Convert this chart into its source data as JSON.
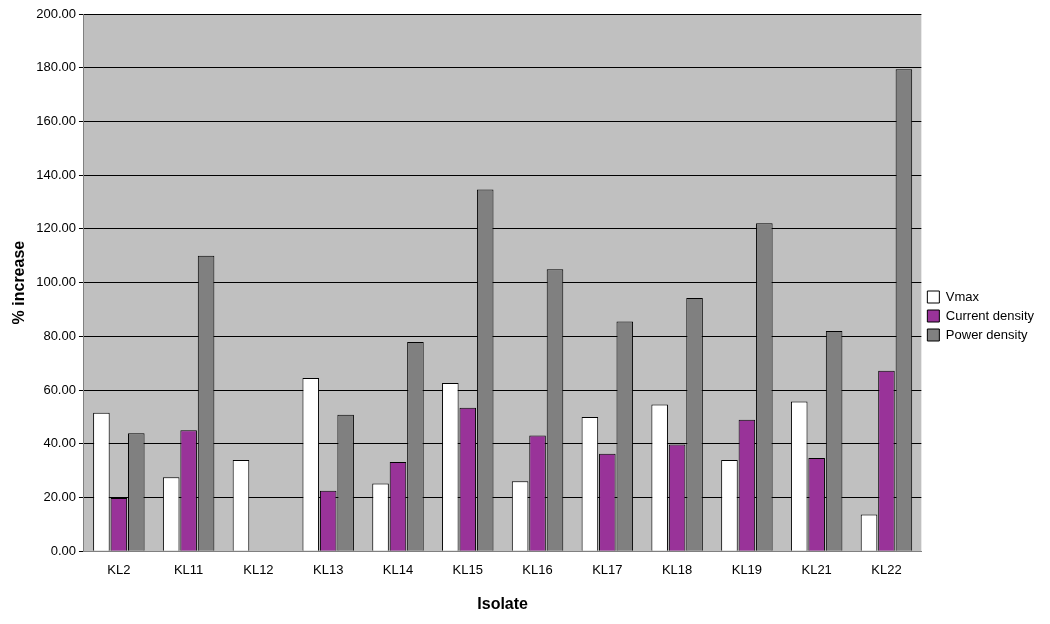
{
  "chart_data": {
    "type": "bar",
    "xlabel": "Isolate",
    "ylabel": "% increase",
    "categories": [
      "KL2",
      "KL11",
      "KL12",
      "KL13",
      "KL14",
      "KL15",
      "KL16",
      "KL17",
      "KL18",
      "KL19",
      "KL21",
      "KL22"
    ],
    "series": [
      {
        "name": "Vmax",
        "color": "#ffffff",
        "values": [
          51.5,
          27.5,
          34,
          64.5,
          25.2,
          62.6,
          26,
          50,
          54.6,
          34,
          55.7,
          13.7
        ]
      },
      {
        "name": "Current density",
        "color": "#993399",
        "values": [
          19.8,
          45,
          null,
          22.5,
          33.2,
          53.4,
          43.1,
          36.3,
          39.7,
          48.9,
          34.7,
          67.2
        ]
      },
      {
        "name": "Power density",
        "color": "#808080",
        "values": [
          43.9,
          110,
          null,
          50.8,
          77.9,
          134.7,
          105,
          85.5,
          94.3,
          122.1,
          82,
          179.4
        ]
      }
    ],
    "ylim": [
      0,
      200
    ],
    "yticks": [
      {
        "value": 0,
        "label": "0.00"
      },
      {
        "value": 20,
        "label": "20.00"
      },
      {
        "value": 40,
        "label": "40.00"
      },
      {
        "value": 60,
        "label": "60.00"
      },
      {
        "value": 80,
        "label": "80.00"
      },
      {
        "value": 100,
        "label": "100.00"
      },
      {
        "value": 120,
        "label": "120.00"
      },
      {
        "value": 140,
        "label": "140.00"
      },
      {
        "value": 160,
        "label": "160.00"
      },
      {
        "value": 180,
        "label": "180.00"
      },
      {
        "value": 200,
        "label": "200.00"
      }
    ],
    "grid": "y",
    "legend": "right"
  }
}
